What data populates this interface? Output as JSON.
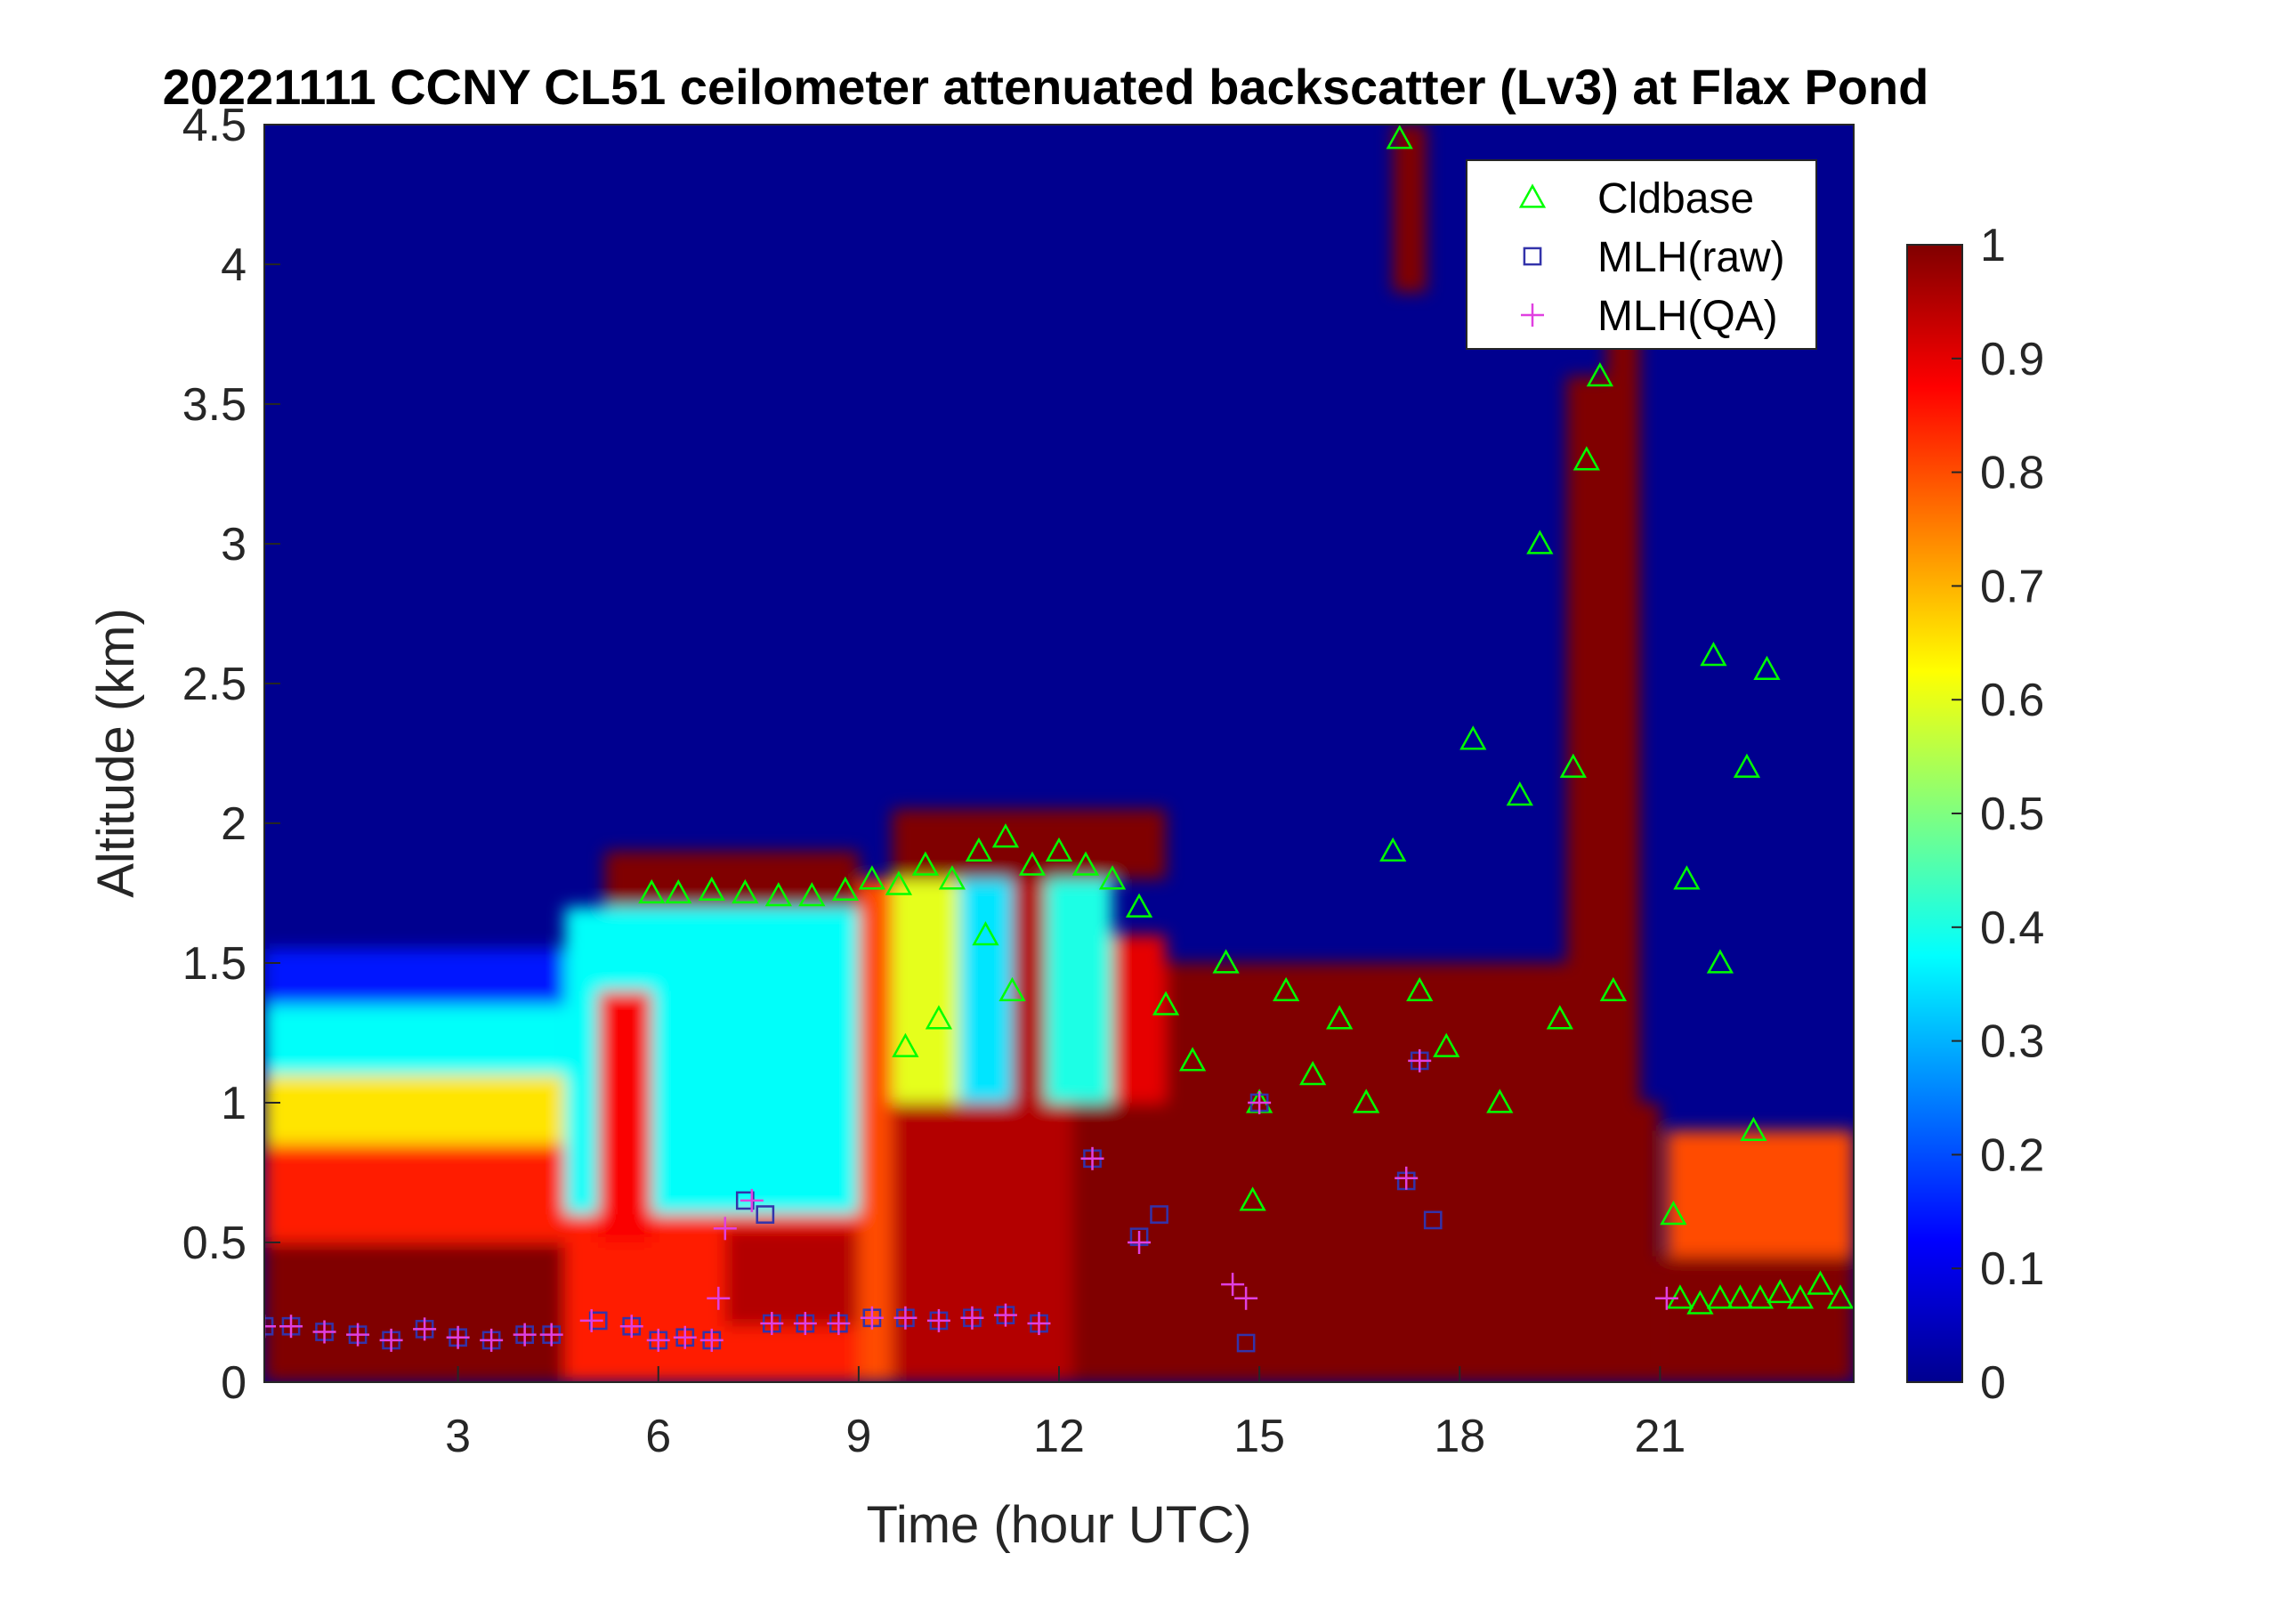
{
  "chart_data": {
    "type": "heatmap",
    "title": "20221111 CCNY CL51 ceilometer attenuated backscatter (Lv3) at Flax Pond",
    "xlabel": "Time (hour UTC)",
    "ylabel": "Altitude (km)",
    "xlim": [
      0.1,
      23.9
    ],
    "ylim": [
      0,
      4.5
    ],
    "x_ticks": [
      3,
      6,
      9,
      12,
      15,
      18,
      21
    ],
    "x_tick_labels": [
      "3",
      "6",
      "9",
      "12",
      "15",
      "18",
      "21"
    ],
    "y_ticks": [
      0,
      0.5,
      1,
      1.5,
      2,
      2.5,
      3,
      3.5,
      4,
      4.5
    ],
    "y_tick_labels": [
      "0",
      "0.5",
      "1",
      "1.5",
      "2",
      "2.5",
      "3",
      "3.5",
      "4",
      "4.5"
    ],
    "colorbar": {
      "colormap": "jet",
      "clim": [
        0,
        1
      ],
      "ticks": [
        0,
        0.1,
        0.2,
        0.3,
        0.4,
        0.5,
        0.6,
        0.7,
        0.8,
        0.9,
        1
      ],
      "tick_labels": [
        "0",
        "0.1",
        "0.2",
        "0.3",
        "0.4",
        "0.5",
        "0.6",
        "0.7",
        "0.8",
        "0.9",
        "1"
      ]
    },
    "legend": {
      "placement": "top-right",
      "entries": [
        {
          "label": "Cldbase",
          "marker": "triangle",
          "color": "#00ff00"
        },
        {
          "label": "MLH(raw)",
          "marker": "square",
          "color": "#3333aa"
        },
        {
          "label": "MLH(QA)",
          "marker": "plus",
          "color": "#e040e0"
        }
      ]
    },
    "heatmap_layers": [
      {
        "x_start": 0.1,
        "x_end": 4.6,
        "y_start": 0,
        "y_end": 0.5,
        "value": 1.0
      },
      {
        "x_start": 0.1,
        "x_end": 4.6,
        "y_start": 0.5,
        "y_end": 0.85,
        "value": 0.85
      },
      {
        "x_start": 0.1,
        "x_end": 4.6,
        "y_start": 0.85,
        "y_end": 1.1,
        "value": 0.65
      },
      {
        "x_start": 0.1,
        "x_end": 4.6,
        "y_start": 1.1,
        "y_end": 1.35,
        "value": 0.38
      },
      {
        "x_start": 0.1,
        "x_end": 4.6,
        "y_start": 1.35,
        "y_end": 1.55,
        "value": 0.15
      },
      {
        "x_start": 4.6,
        "x_end": 9.0,
        "y_start": 0,
        "y_end": 0.6,
        "value": 0.85
      },
      {
        "x_start": 4.6,
        "x_end": 9.0,
        "y_start": 0.6,
        "y_end": 1.7,
        "value": 0.38
      },
      {
        "x_start": 5.1,
        "x_end": 5.9,
        "y_start": 0.5,
        "y_end": 1.4,
        "value": 0.88
      },
      {
        "x_start": 5.2,
        "x_end": 9.0,
        "y_start": 1.7,
        "y_end": 1.9,
        "value": 1.0
      },
      {
        "x_start": 7.0,
        "x_end": 9.0,
        "y_start": 0.2,
        "y_end": 0.55,
        "value": 0.95
      },
      {
        "x_start": 9.0,
        "x_end": 9.5,
        "y_start": 0,
        "y_end": 1.8,
        "value": 0.8
      },
      {
        "x_start": 9.5,
        "x_end": 12.2,
        "y_start": 0,
        "y_end": 1.0,
        "value": 0.95
      },
      {
        "x_start": 9.5,
        "x_end": 10.5,
        "y_start": 1.0,
        "y_end": 1.8,
        "value": 0.6
      },
      {
        "x_start": 10.5,
        "x_end": 11.3,
        "y_start": 1.0,
        "y_end": 1.9,
        "value": 0.35
      },
      {
        "x_start": 11.3,
        "x_end": 11.8,
        "y_start": 1.0,
        "y_end": 1.9,
        "value": 0.95
      },
      {
        "x_start": 11.8,
        "x_end": 12.8,
        "y_start": 1.0,
        "y_end": 1.8,
        "value": 0.4
      },
      {
        "x_start": 12.8,
        "x_end": 13.6,
        "y_start": 0.5,
        "y_end": 1.6,
        "value": 0.9
      },
      {
        "x_start": 9.5,
        "x_end": 13.6,
        "y_start": 1.8,
        "y_end": 2.05,
        "value": 1.0
      },
      {
        "x_start": 12.2,
        "x_end": 20.8,
        "y_start": 0,
        "y_end": 1.0,
        "value": 1.0
      },
      {
        "x_start": 13.6,
        "x_end": 20.0,
        "y_start": 1.0,
        "y_end": 1.5,
        "value": 1.0
      },
      {
        "x_start": 19.6,
        "x_end": 20.7,
        "y_start": 0,
        "y_end": 3.6,
        "value": 1.0
      },
      {
        "x_start": 20.7,
        "x_end": 21.0,
        "y_start": 0,
        "y_end": 1.0,
        "value": 1.0
      },
      {
        "x_start": 21.0,
        "x_end": 23.9,
        "y_start": 0,
        "y_end": 0.45,
        "value": 1.0
      },
      {
        "x_start": 21.1,
        "x_end": 23.9,
        "y_start": 0.45,
        "y_end": 0.9,
        "value": 0.8
      },
      {
        "x_start": 17.0,
        "x_end": 17.5,
        "y_start": 3.9,
        "y_end": 4.5,
        "value": 1.0
      },
      {
        "x_start": 20.2,
        "x_end": 20.7,
        "y_start": 3.6,
        "y_end": 4.2,
        "value": 1.0
      }
    ],
    "series": [
      {
        "name": "Cldbase",
        "x": [
          5.9,
          6.3,
          6.8,
          7.3,
          7.8,
          8.3,
          8.8,
          9.2,
          9.6,
          10.0,
          10.4,
          10.8,
          11.2,
          11.6,
          12.0,
          12.4,
          12.8,
          13.2,
          13.6,
          14.0,
          14.5,
          15.0,
          15.4,
          15.8,
          16.2,
          16.6,
          17.0,
          17.4,
          17.8,
          18.2,
          18.6,
          18.9,
          19.2,
          19.5,
          19.7,
          19.9,
          20.1,
          20.3,
          9.7,
          10.2,
          10.9,
          11.3,
          14.9,
          17.1,
          21.3,
          21.6,
          21.9,
          22.2,
          22.5,
          22.8,
          23.1,
          23.4,
          23.7,
          21.4,
          21.8,
          22.3,
          22.6,
          21.2,
          21.9,
          22.4
        ],
        "y": [
          1.75,
          1.75,
          1.76,
          1.75,
          1.74,
          1.74,
          1.76,
          1.8,
          1.78,
          1.85,
          1.8,
          1.9,
          1.95,
          1.85,
          1.9,
          1.85,
          1.8,
          1.7,
          1.35,
          1.15,
          1.5,
          1.0,
          1.4,
          1.1,
          1.3,
          1.0,
          1.9,
          1.4,
          1.2,
          2.3,
          1.0,
          2.1,
          3.0,
          1.3,
          2.2,
          3.3,
          3.6,
          1.4,
          1.2,
          1.3,
          1.6,
          1.4,
          0.65,
          4.45,
          0.3,
          0.28,
          0.3,
          0.3,
          0.3,
          0.32,
          0.3,
          0.35,
          0.3,
          1.8,
          2.6,
          2.2,
          2.55,
          0.6,
          1.5,
          0.9
        ]
      },
      {
        "name": "MLH(raw)",
        "x": [
          0.1,
          0.5,
          1.0,
          1.5,
          2.0,
          2.5,
          3.0,
          3.5,
          4.0,
          4.4,
          5.1,
          5.6,
          6.0,
          6.4,
          6.8,
          7.7,
          8.2,
          8.7,
          9.2,
          9.7,
          10.2,
          10.7,
          11.2,
          11.7,
          7.3,
          7.6,
          12.5,
          13.2,
          13.5,
          15.0,
          17.4,
          17.6,
          17.2,
          14.8
        ],
        "y": [
          0.2,
          0.2,
          0.18,
          0.17,
          0.15,
          0.19,
          0.16,
          0.15,
          0.17,
          0.17,
          0.22,
          0.2,
          0.15,
          0.16,
          0.15,
          0.21,
          0.21,
          0.21,
          0.23,
          0.23,
          0.22,
          0.23,
          0.24,
          0.21,
          0.65,
          0.6,
          0.8,
          0.52,
          0.6,
          1.0,
          1.15,
          0.58,
          0.72,
          0.14
        ]
      },
      {
        "name": "MLH(QA)",
        "x": [
          0.1,
          0.5,
          1.0,
          1.5,
          2.0,
          2.5,
          3.0,
          3.5,
          4.0,
          4.4,
          5.0,
          5.6,
          6.0,
          6.4,
          6.8,
          7.7,
          8.2,
          8.7,
          9.2,
          9.7,
          10.2,
          10.7,
          11.2,
          11.7,
          7.0,
          6.9,
          7.4,
          12.5,
          13.2,
          15.0,
          17.4,
          17.2,
          14.6,
          14.8,
          21.1
        ],
        "y": [
          0.2,
          0.2,
          0.18,
          0.17,
          0.15,
          0.19,
          0.16,
          0.15,
          0.17,
          0.17,
          0.22,
          0.2,
          0.15,
          0.16,
          0.15,
          0.21,
          0.21,
          0.21,
          0.23,
          0.23,
          0.22,
          0.23,
          0.24,
          0.21,
          0.55,
          0.3,
          0.65,
          0.8,
          0.5,
          1.0,
          1.15,
          0.73,
          0.35,
          0.3,
          0.3
        ]
      }
    ]
  }
}
